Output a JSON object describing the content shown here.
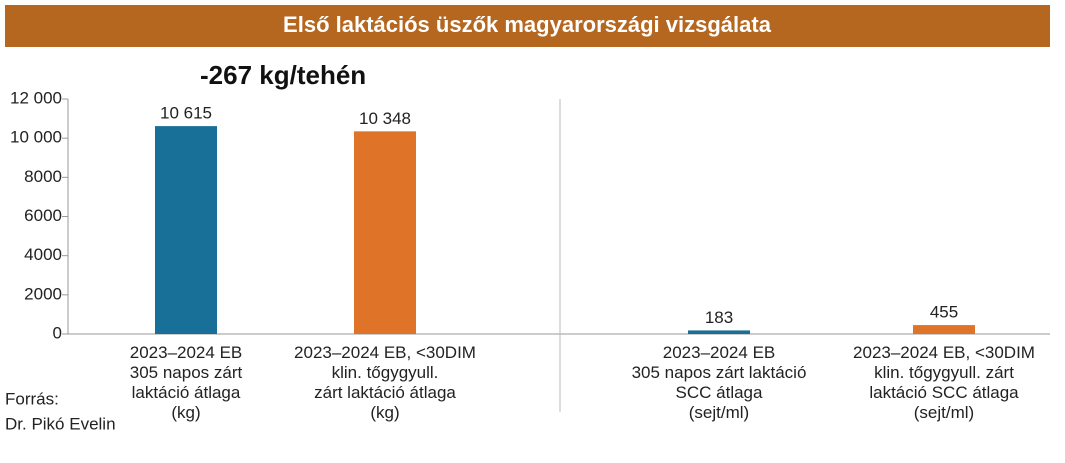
{
  "chart_data": {
    "type": "bar",
    "title": "Első laktációs üszők magyarországi vizsgálata",
    "annotation": "-267 kg/tehén",
    "categories": [
      "2023–2024 EB\n305 napos zárt\nlaktáció átlaga\n(kg)",
      "2023–2024 EB, <30DIM\nklin. tőgygyull.\nzárt laktáció átlaga\n(kg)",
      "2023–2024 EB\n305 napos zárt laktáció\nSCC átlaga\n(sejt/ml)",
      "2023–2024 EB, <30DIM\nklin. tőgygyull. zárt\nlaktáció SCC átlaga\n(sejt/ml)"
    ],
    "values": [
      10615,
      10348,
      183,
      455
    ],
    "value_labels": [
      "10 615",
      "10 348",
      "183",
      "455"
    ],
    "colors": [
      "#186f97",
      "#df7428",
      "#186f97",
      "#df7428"
    ],
    "ylim": [
      0,
      12000
    ],
    "yticks": [
      0,
      2000,
      4000,
      6000,
      8000,
      {
        "value": 10000,
        "label": "10 000"
      },
      {
        "value": 12000,
        "label": "12 000"
      }
    ],
    "source": [
      "Forrás:",
      "Dr. Pikó Evelin"
    ]
  }
}
